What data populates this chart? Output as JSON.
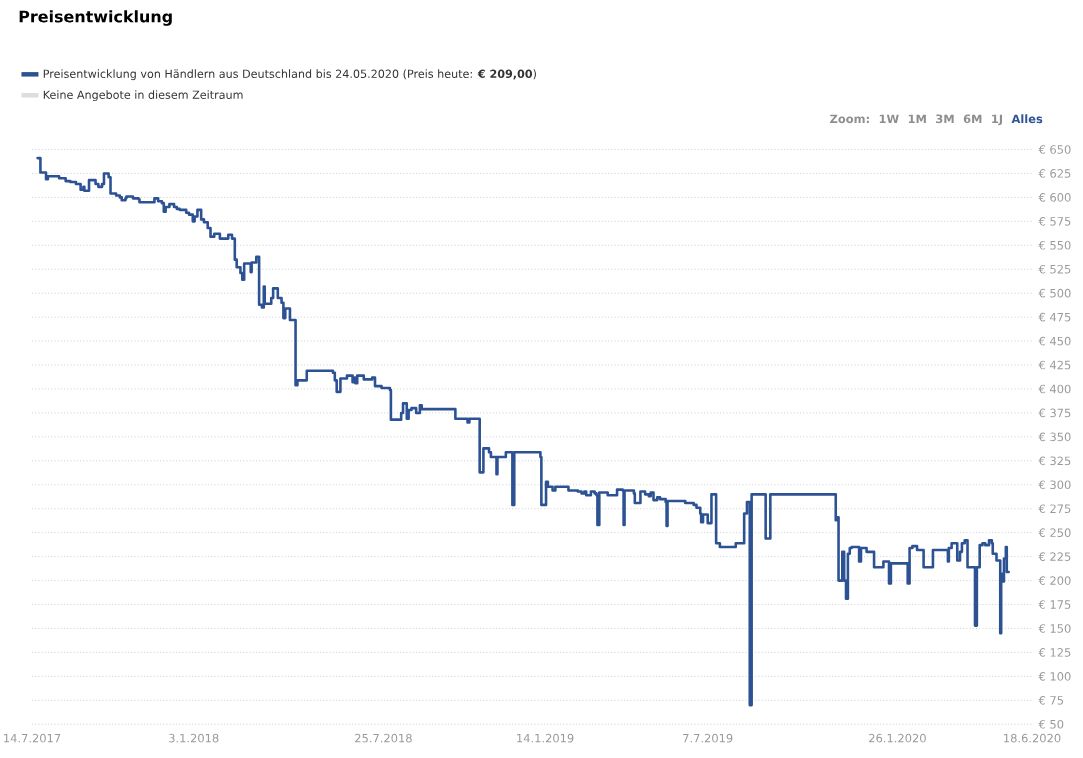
{
  "chart_data": {
    "type": "step",
    "title": "Preisentwicklung",
    "annotations": [
      "Zoom:",
      "1W",
      "1M",
      "3M",
      "6M",
      "1J",
      "Alles"
    ],
    "xlim": [
      "2017-07-14",
      "2020-06-18"
    ],
    "xticks": [
      {
        "value": "2017-07-14",
        "label": "14.7.2017"
      },
      {
        "value": "2018-01-03",
        "label": "3.1.2018"
      },
      {
        "value": "2018-07-25",
        "label": "25.7.2018"
      },
      {
        "value": "2019-01-14",
        "label": "14.1.2019"
      },
      {
        "value": "2019-07-07",
        "label": "7.7.2019"
      },
      {
        "value": "2020-01-26",
        "label": "26.1.2020"
      },
      {
        "value": "2020-06-18",
        "label": "18.6.2020"
      }
    ],
    "ylim": [
      50,
      650
    ],
    "yticks": [
      {
        "value": 50,
        "label": "€ 50"
      },
      {
        "value": 75,
        "label": "€ 75"
      },
      {
        "value": 100,
        "label": "€ 100"
      },
      {
        "value": 125,
        "label": "€ 125"
      },
      {
        "value": 150,
        "label": "€ 150"
      },
      {
        "value": 175,
        "label": "€ 175"
      },
      {
        "value": 200,
        "label": "€ 200"
      },
      {
        "value": 225,
        "label": "€ 225"
      },
      {
        "value": 250,
        "label": "€ 250"
      },
      {
        "value": 275,
        "label": "€ 275"
      },
      {
        "value": 300,
        "label": "€ 300"
      },
      {
        "value": 325,
        "label": "€ 325"
      },
      {
        "value": 350,
        "label": "€ 350"
      },
      {
        "value": 375,
        "label": "€ 375"
      },
      {
        "value": 400,
        "label": "€ 400"
      },
      {
        "value": 425,
        "label": "€ 425"
      },
      {
        "value": 450,
        "label": "€ 450"
      },
      {
        "value": 475,
        "label": "€ 475"
      },
      {
        "value": 500,
        "label": "€ 500"
      },
      {
        "value": 525,
        "label": "€ 525"
      },
      {
        "value": 550,
        "label": "€ 550"
      },
      {
        "value": 575,
        "label": "€ 575"
      },
      {
        "value": 600,
        "label": "€ 600"
      },
      {
        "value": 625,
        "label": "€ 625"
      },
      {
        "value": 650,
        "label": "€ 650"
      }
    ],
    "grid": "y",
    "legend": "top left",
    "line_style": "solid",
    "series": [
      {
        "name": "Preisentwicklung von Händlern aus Deutschland bis 24.05.2020 (Preis heute: **€ 209,00**)",
        "color": "#2d5294",
        "x": [
          "2017-07-20",
          "2017-07-23",
          "2017-07-29",
          "2017-07-31",
          "2017-08-12",
          "2017-08-19",
          "2017-08-24",
          "2017-08-30",
          "2017-09-04",
          "2017-09-07",
          "2017-09-08",
          "2017-09-13",
          "2017-09-20",
          "2017-09-23",
          "2017-09-27",
          "2017-09-29",
          "2017-10-04",
          "2017-10-06",
          "2017-10-12",
          "2017-10-16",
          "2017-10-18",
          "2017-10-22",
          "2017-10-23",
          "2017-10-30",
          "2017-11-05",
          "2017-11-06",
          "2017-11-22",
          "2017-11-26",
          "2017-11-30",
          "2017-12-02",
          "2017-12-04",
          "2017-12-08",
          "2017-12-13",
          "2017-12-16",
          "2017-12-19",
          "2017-12-26",
          "2017-12-29",
          "2018-01-02",
          "2018-01-04",
          "2018-01-07",
          "2018-01-11",
          "2018-01-14",
          "2018-01-18",
          "2018-01-21",
          "2018-01-25",
          "2018-01-31",
          "2018-02-09",
          "2018-02-13",
          "2018-02-16",
          "2018-02-18",
          "2018-02-22",
          "2018-02-24",
          "2018-02-26",
          "2018-03-05",
          "2018-03-06",
          "2018-03-11",
          "2018-03-14",
          "2018-03-17",
          "2018-03-19",
          "2018-03-20",
          "2018-03-27",
          "2018-03-29",
          "2018-04-03",
          "2018-04-07",
          "2018-04-09",
          "2018-04-11",
          "2018-04-16",
          "2018-04-22",
          "2018-04-24",
          "2018-05-04",
          "2018-06-01",
          "2018-06-03",
          "2018-06-05",
          "2018-06-09",
          "2018-06-16",
          "2018-06-22",
          "2018-06-24",
          "2018-06-25",
          "2018-06-27",
          "2018-07-04",
          "2018-07-13",
          "2018-07-16",
          "2018-07-23",
          "2018-08-01",
          "2018-08-02",
          "2018-08-13",
          "2018-08-15",
          "2018-08-19",
          "2018-08-21",
          "2018-08-24",
          "2018-08-29",
          "2018-09-02",
          "2018-09-04",
          "2018-10-10",
          "2018-10-23",
          "2018-10-25",
          "2018-11-05",
          "2018-11-09",
          "2018-11-15",
          "2018-11-17",
          "2018-11-23",
          "2018-11-24",
          "2018-12-03",
          "2018-12-10",
          "2018-12-12",
          "2019-01-09",
          "2019-01-10",
          "2019-01-15",
          "2019-01-17",
          "2019-01-22",
          "2019-01-25",
          "2019-02-08",
          "2019-02-18",
          "2019-02-22",
          "2019-02-25",
          "2019-02-27",
          "2019-03-04",
          "2019-03-08",
          "2019-03-10",
          "2019-03-11",
          "2019-03-13",
          "2019-03-22",
          "2019-04-01",
          "2019-04-07",
          "2019-04-08",
          "2019-04-09",
          "2019-04-19",
          "2019-04-20",
          "2019-04-26",
          "2019-05-01",
          "2019-05-05",
          "2019-05-07",
          "2019-05-10",
          "2019-05-14",
          "2019-05-17",
          "2019-05-23",
          "2019-05-24",
          "2019-05-25",
          "2019-06-13",
          "2019-06-22",
          "2019-06-25",
          "2019-06-29",
          "2019-06-30",
          "2019-07-02",
          "2019-07-07",
          "2019-07-11",
          "2019-07-16",
          "2019-07-20",
          "2019-08-06",
          "2019-08-15",
          "2019-08-18",
          "2019-08-21",
          "2019-08-23",
          "2019-09-07",
          "2019-09-12",
          "2019-11-21",
          "2019-11-23",
          "2019-11-24",
          "2019-11-28",
          "2019-11-30",
          "2019-12-02",
          "2019-12-04",
          "2019-12-06",
          "2019-12-08",
          "2019-12-16",
          "2019-12-18",
          "2019-12-24",
          "2020-01-01",
          "2020-01-11",
          "2020-01-17",
          "2020-01-19",
          "2020-02-06",
          "2020-02-08",
          "2020-02-11",
          "2020-02-16",
          "2020-02-23",
          "2020-03-04",
          "2020-03-20",
          "2020-03-21",
          "2020-03-24",
          "2020-03-30",
          "2020-04-02",
          "2020-04-04",
          "2020-04-07",
          "2020-04-10",
          "2020-04-18",
          "2020-04-20",
          "2020-04-23",
          "2020-04-26",
          "2020-04-29",
          "2020-05-03",
          "2020-05-06",
          "2020-05-07",
          "2020-05-11",
          "2020-05-15",
          "2020-05-16",
          "2020-05-17",
          "2020-05-19",
          "2020-05-21",
          "2020-05-22",
          "2020-05-24"
        ],
        "values": [
          641,
          626,
          619,
          622,
          620,
          617,
          616,
          614,
          608,
          611,
          607,
          618,
          614,
          611,
          614,
          625,
          621,
          604,
          602,
          600,
          597,
          599,
          601,
          599,
          598,
          595,
          599,
          596,
          594,
          585,
          590,
          593,
          590,
          588,
          587,
          584,
          582,
          575,
          580,
          587,
          577,
          574,
          568,
          559,
          562,
          557,
          561,
          557,
          535,
          527,
          521,
          514,
          531,
          522,
          532,
          538,
          488,
          485,
          507,
          489,
          495,
          505,
          495,
          490,
          474,
          484,
          472,
          404,
          409,
          419,
          417,
          409,
          397,
          411,
          414,
          407,
          412,
          406,
          414,
          410,
          412,
          403,
          401,
          399,
          368,
          375,
          385,
          369,
          378,
          380,
          375,
          383,
          379,
          369,
          365,
          369,
          313,
          338,
          334,
          329,
          311,
          329,
          334,
          279,
          334,
          329,
          279,
          303,
          298,
          294,
          298,
          294,
          293,
          291,
          293,
          289,
          293,
          291,
          289,
          258,
          292,
          289,
          295,
          294,
          258,
          294,
          291,
          281,
          293,
          290,
          288,
          292,
          284,
          287,
          285,
          282,
          257,
          283,
          281,
          279,
          276,
          270,
          261,
          269,
          260,
          290,
          239,
          235,
          239,
          270,
          282,
          70,
          290,
          244,
          290,
          263,
          266,
          200,
          230,
          200,
          181,
          228,
          234,
          235,
          220,
          234,
          230,
          214,
          220,
          197,
          218,
          197,
          234,
          236,
          232,
          214,
          232,
          220,
          234,
          239,
          221,
          230,
          239,
          242,
          214,
          153,
          214,
          237,
          239,
          237,
          242,
          239,
          228,
          221,
          145,
          207,
          199,
          223,
          235,
          209,
          209
        ]
      },
      {
        "name": "Keine Angebote in diesem Zeitraum",
        "color": "#dddddd"
      }
    ]
  }
}
